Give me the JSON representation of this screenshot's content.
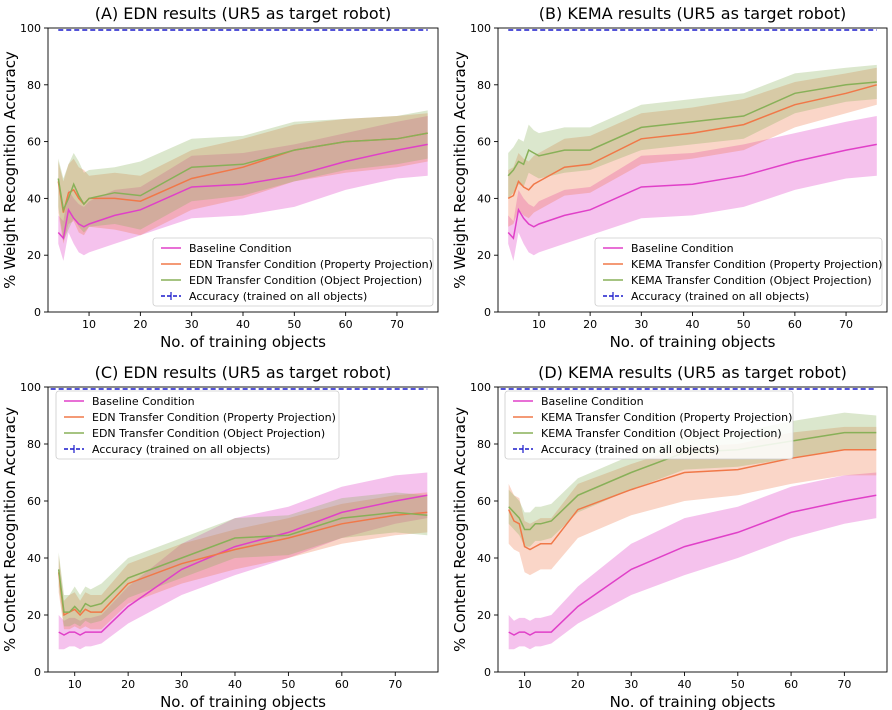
{
  "colors": {
    "baseline": "#e040c8",
    "property": "#f07848",
    "object": "#88b058",
    "accuracy": "#1a1acc"
  },
  "chart_data": [
    {
      "type": "line",
      "title": "(A) EDN results (UR5 as target robot)",
      "xlabel": "No. of training objects",
      "ylabel": "% Weight Recognition Accuracy",
      "xlim": [
        2,
        78
      ],
      "ylim": [
        0,
        100
      ],
      "xticks": [
        10,
        20,
        30,
        40,
        50,
        60,
        70
      ],
      "yticks": [
        0,
        20,
        40,
        60,
        80,
        100
      ],
      "legend": "bottom-right",
      "accuracy": {
        "name": "Accuracy (trained on all objects)",
        "value": 99.3
      },
      "series": [
        {
          "name": "Baseline Condition",
          "key": "baseline",
          "x": [
            4,
            5,
            6,
            7,
            8,
            9,
            10,
            15,
            20,
            30,
            40,
            50,
            60,
            70,
            76
          ],
          "y": [
            28,
            26,
            36,
            33,
            31,
            30,
            31,
            34,
            36,
            44,
            45,
            48,
            53,
            57,
            59
          ],
          "lo": [
            24,
            18,
            28,
            24,
            21,
            20,
            21,
            24,
            27,
            33,
            34,
            37,
            43,
            47,
            48
          ],
          "hi": [
            34,
            32,
            43,
            40,
            38,
            37,
            39,
            43,
            44,
            55,
            56,
            59,
            63,
            67,
            69
          ]
        },
        {
          "name": "EDN Transfer Condition (Property Projection)",
          "key": "property",
          "x": [
            4,
            5,
            6,
            7,
            8,
            9,
            10,
            15,
            20,
            30,
            40,
            50,
            60,
            70,
            76
          ],
          "y": [
            46,
            35,
            42,
            43,
            40,
            38,
            40,
            40,
            39,
            47,
            51,
            57,
            60,
            61,
            63
          ],
          "lo": [
            35,
            24,
            31,
            32,
            28,
            27,
            30,
            29,
            27,
            36,
            40,
            46,
            49,
            51,
            53
          ],
          "hi": [
            53,
            46,
            52,
            54,
            51,
            50,
            48,
            49,
            48,
            57,
            61,
            66,
            68,
            69,
            70
          ]
        },
        {
          "name": "EDN Transfer Condition (Object Projection)",
          "key": "object",
          "x": [
            4,
            5,
            6,
            7,
            8,
            9,
            10,
            15,
            20,
            30,
            40,
            50,
            60,
            70,
            76
          ],
          "y": [
            47,
            36,
            40,
            45,
            41,
            38,
            40,
            42,
            41,
            51,
            52,
            57,
            60,
            61,
            63
          ],
          "lo": [
            37,
            25,
            29,
            33,
            30,
            28,
            30,
            31,
            29,
            39,
            41,
            46,
            50,
            52,
            54
          ],
          "hi": [
            54,
            47,
            52,
            56,
            53,
            49,
            50,
            51,
            53,
            61,
            62,
            67,
            68,
            69,
            71
          ]
        }
      ]
    },
    {
      "type": "line",
      "title": "(B) KEMA results (UR5 as target robot)",
      "xlabel": "No. of training objects",
      "ylabel": "% Weight Recognition Accuracy",
      "xlim": [
        2,
        78
      ],
      "ylim": [
        0,
        100
      ],
      "xticks": [
        10,
        20,
        30,
        40,
        50,
        60,
        70
      ],
      "yticks": [
        0,
        20,
        40,
        60,
        80,
        100
      ],
      "legend": "bottom-right",
      "accuracy": {
        "name": "Accuracy (trained on all objects)",
        "value": 99.3
      },
      "series": [
        {
          "name": "Baseline Condition",
          "key": "baseline",
          "x": [
            4,
            5,
            6,
            7,
            8,
            9,
            10,
            15,
            20,
            30,
            40,
            50,
            60,
            70,
            76
          ],
          "y": [
            28,
            26,
            36,
            33,
            31,
            30,
            31,
            34,
            36,
            44,
            45,
            48,
            53,
            57,
            59
          ],
          "lo": [
            24,
            18,
            28,
            24,
            21,
            20,
            21,
            24,
            27,
            33,
            34,
            37,
            43,
            47,
            48
          ],
          "hi": [
            34,
            32,
            43,
            40,
            38,
            37,
            39,
            43,
            44,
            55,
            56,
            59,
            63,
            67,
            69
          ]
        },
        {
          "name": "KEMA Transfer Condition (Property Projection)",
          "key": "property",
          "x": [
            4,
            5,
            6,
            7,
            8,
            9,
            10,
            15,
            20,
            30,
            40,
            50,
            60,
            70,
            76
          ],
          "y": [
            40,
            41,
            46,
            44,
            43,
            45,
            46,
            51,
            52,
            61,
            63,
            66,
            73,
            77,
            80
          ],
          "lo": [
            30,
            31,
            36,
            34,
            33,
            35,
            36,
            41,
            42,
            52,
            54,
            57,
            65,
            70,
            73
          ],
          "hi": [
            50,
            51,
            56,
            54,
            53,
            55,
            56,
            61,
            62,
            70,
            72,
            75,
            81,
            84,
            86
          ]
        },
        {
          "name": "KEMA Transfer Condition (Object Projection)",
          "key": "object",
          "x": [
            4,
            5,
            6,
            7,
            8,
            9,
            10,
            15,
            20,
            30,
            40,
            50,
            60,
            70,
            76
          ],
          "y": [
            48,
            50,
            53,
            52,
            57,
            56,
            55,
            57,
            57,
            65,
            67,
            69,
            77,
            80,
            81
          ],
          "lo": [
            40,
            42,
            45,
            44,
            49,
            48,
            47,
            49,
            50,
            57,
            59,
            61,
            70,
            74,
            75
          ],
          "hi": [
            56,
            58,
            61,
            60,
            66,
            64,
            63,
            65,
            65,
            73,
            75,
            77,
            84,
            86,
            87
          ]
        }
      ]
    },
    {
      "type": "line",
      "title": "(C) EDN results (UR5 as target robot)",
      "xlabel": "No. of training objects",
      "ylabel": "% Content Recognition Accuracy",
      "xlim": [
        5,
        78
      ],
      "ylim": [
        0,
        100
      ],
      "xticks": [
        10,
        20,
        30,
        40,
        50,
        60,
        70
      ],
      "yticks": [
        0,
        20,
        40,
        60,
        80,
        100
      ],
      "legend": "top-left",
      "accuracy": {
        "name": "Accuracy (trained on all objects)",
        "value": 99.3
      },
      "series": [
        {
          "name": "Baseline Condition",
          "key": "baseline",
          "x": [
            7,
            8,
            9,
            10,
            11,
            12,
            13,
            15,
            20,
            30,
            40,
            50,
            60,
            70,
            76
          ],
          "y": [
            14,
            13,
            14,
            14,
            13,
            14,
            14,
            14,
            23,
            36,
            44,
            49,
            56,
            60,
            62
          ],
          "lo": [
            8,
            8,
            9,
            9,
            8,
            9,
            9,
            10,
            17,
            27,
            34,
            40,
            47,
            52,
            54
          ],
          "hi": [
            20,
            18,
            19,
            19,
            18,
            19,
            19,
            20,
            30,
            45,
            54,
            58,
            65,
            69,
            70
          ]
        },
        {
          "name": "EDN Transfer Condition (Property Projection)",
          "key": "property",
          "x": [
            7,
            8,
            9,
            10,
            11,
            12,
            13,
            15,
            20,
            30,
            40,
            50,
            60,
            70,
            76
          ],
          "y": [
            35,
            20,
            21,
            22,
            20,
            22,
            21,
            21,
            31,
            38,
            43,
            47,
            52,
            55,
            56
          ],
          "lo": [
            28,
            15,
            15,
            16,
            15,
            16,
            15,
            15,
            24,
            31,
            36,
            40,
            45,
            48,
            49
          ],
          "hi": [
            41,
            25,
            27,
            28,
            25,
            28,
            27,
            27,
            38,
            45,
            50,
            54,
            59,
            62,
            63
          ]
        },
        {
          "name": "EDN Transfer Condition (Object Projection)",
          "key": "object",
          "x": [
            7,
            8,
            9,
            10,
            11,
            12,
            13,
            15,
            20,
            30,
            40,
            50,
            60,
            70,
            76
          ],
          "y": [
            36,
            21,
            21,
            23,
            21,
            24,
            23,
            24,
            33,
            40,
            47,
            48,
            54,
            56,
            55
          ],
          "lo": [
            30,
            16,
            16,
            17,
            16,
            18,
            17,
            18,
            26,
            33,
            40,
            41,
            47,
            49,
            48
          ],
          "hi": [
            42,
            27,
            27,
            30,
            27,
            30,
            29,
            31,
            40,
            47,
            54,
            55,
            61,
            63,
            62
          ]
        }
      ]
    },
    {
      "type": "line",
      "title": "(D) KEMA results (UR5 as target robot)",
      "xlabel": "No. of training objects",
      "ylabel": "% Content Recognition Accuracy",
      "xlim": [
        5,
        78
      ],
      "ylim": [
        0,
        100
      ],
      "xticks": [
        10,
        20,
        30,
        40,
        50,
        60,
        70
      ],
      "yticks": [
        0,
        20,
        40,
        60,
        80,
        100
      ],
      "legend": "top-left",
      "accuracy": {
        "name": "Accuracy (trained on all objects)",
        "value": 99.3
      },
      "series": [
        {
          "name": "Baseline Condition",
          "key": "baseline",
          "x": [
            7,
            8,
            9,
            10,
            11,
            12,
            13,
            15,
            20,
            30,
            40,
            50,
            60,
            70,
            76
          ],
          "y": [
            14,
            13,
            14,
            14,
            13,
            14,
            14,
            14,
            23,
            36,
            44,
            49,
            56,
            60,
            62
          ],
          "lo": [
            8,
            8,
            9,
            9,
            8,
            9,
            9,
            10,
            17,
            27,
            34,
            40,
            47,
            52,
            54
          ],
          "hi": [
            20,
            18,
            19,
            19,
            18,
            19,
            19,
            20,
            30,
            45,
            54,
            58,
            65,
            69,
            70
          ]
        },
        {
          "name": "KEMA Transfer Condition (Property Projection)",
          "key": "property",
          "x": [
            7,
            8,
            9,
            10,
            11,
            12,
            13,
            15,
            20,
            30,
            40,
            50,
            60,
            70,
            76
          ],
          "y": [
            57,
            53,
            52,
            44,
            43,
            44,
            45,
            45,
            57,
            64,
            70,
            71,
            75,
            78,
            78
          ],
          "lo": [
            45,
            43,
            42,
            35,
            34,
            35,
            36,
            36,
            47,
            55,
            60,
            62,
            66,
            69,
            69
          ],
          "hi": [
            66,
            62,
            61,
            53,
            52,
            53,
            54,
            54,
            66,
            73,
            79,
            80,
            84,
            86,
            86
          ]
        },
        {
          "name": "KEMA Transfer Condition (Object Projection)",
          "key": "object",
          "x": [
            7,
            8,
            9,
            10,
            11,
            12,
            13,
            15,
            20,
            30,
            40,
            50,
            60,
            70,
            76
          ],
          "y": [
            58,
            56,
            54,
            50,
            50,
            52,
            52,
            53,
            62,
            70,
            77,
            78,
            81,
            84,
            84
          ],
          "lo": [
            52,
            50,
            48,
            44,
            44,
            46,
            46,
            47,
            56,
            64,
            71,
            72,
            75,
            78,
            78
          ],
          "hi": [
            64,
            62,
            60,
            56,
            56,
            58,
            58,
            59,
            68,
            76,
            83,
            84,
            88,
            91,
            90
          ]
        }
      ]
    }
  ]
}
